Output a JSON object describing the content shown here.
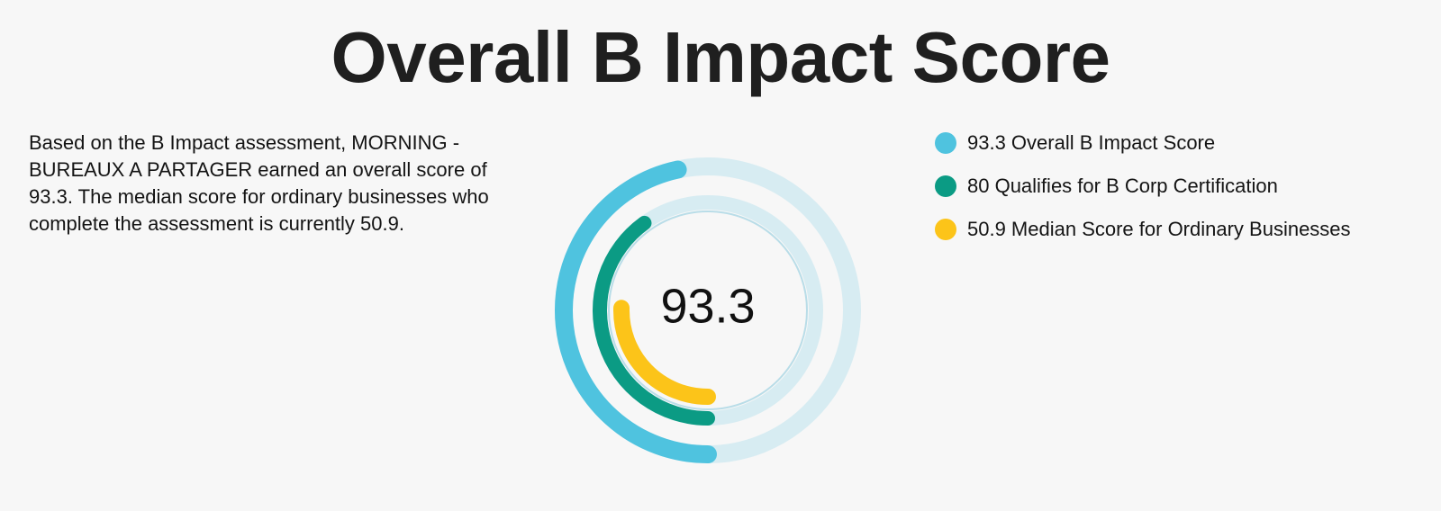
{
  "title": "Overall B Impact Score",
  "description": "Based on the B Impact assessment, MORNING - BUREAUX A PARTAGER earned an overall score of 93.3. The median score for ordinary businesses who complete the assessment is currently 50.9.",
  "chart_data": {
    "type": "radial-bar",
    "center_label": "93.3",
    "max_value": 200,
    "series": [
      {
        "value": 93.3,
        "label": "93.3 Overall B Impact Score",
        "color": "#4fc3df",
        "track_color": "#d7ecf2"
      },
      {
        "value": 80,
        "label": "80 Qualifies for B Corp Certification",
        "color": "#0b9b84",
        "track_color": "#d7ecf2"
      },
      {
        "value": 50.9,
        "label": "50.9 Median Score for Ordinary Businesses",
        "color": "#fcc419",
        "track_color": "#d7ecf2"
      }
    ]
  }
}
